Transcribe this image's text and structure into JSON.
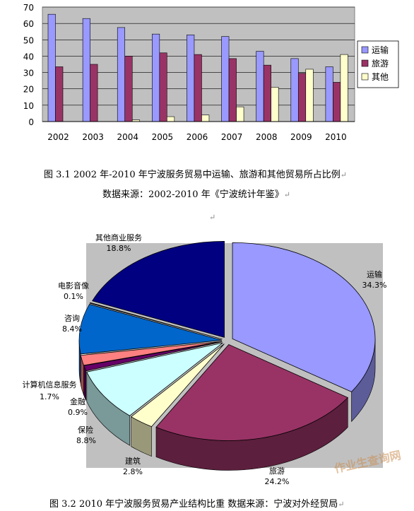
{
  "captions": {
    "fig1_title": "图 3.1   2002 年-2010 年宁波服务贸易中运输、旅游和其他贸易所占比例",
    "fig1_source": "数据来源：2002-2010 年《宁波统计年鉴》",
    "fig2_title": "图 3.2  2010 年宁波服务贸易产业结构比重 数据来源：宁波对外经贸局"
  },
  "watermark": "作业生查询网",
  "chart_data": [
    {
      "type": "bar",
      "categories": [
        "2002",
        "2003",
        "2004",
        "2005",
        "2006",
        "2007",
        "2008",
        "2009",
        "2010"
      ],
      "series": [
        {
          "name": "运输",
          "color": "#9999ff",
          "values": [
            65.6,
            63.0,
            57.5,
            53.5,
            53.0,
            52.0,
            43.0,
            38.5,
            33.5
          ]
        },
        {
          "name": "旅游",
          "color": "#993366",
          "values": [
            33.5,
            35.0,
            40.0,
            42.0,
            41.0,
            38.5,
            34.5,
            29.5,
            24.0
          ]
        },
        {
          "name": "其他",
          "color": "#ffffcc",
          "values": [
            0.0,
            0.0,
            1.0,
            3.0,
            4.0,
            9.0,
            21.0,
            32.0,
            41.0
          ]
        }
      ],
      "ylim": [
        0,
        70
      ],
      "yticks": [
        0,
        10,
        20,
        30,
        40,
        50,
        60,
        70
      ],
      "legend": "right",
      "grid": true
    },
    {
      "type": "pie",
      "style": "3d exploded",
      "slices": [
        {
          "label": "运输",
          "value": 34.3,
          "pct": "34.3%",
          "color": "#9999ff"
        },
        {
          "label": "旅游",
          "value": 24.2,
          "pct": "24.2%",
          "color": "#993366"
        },
        {
          "label": "建筑",
          "value": 2.8,
          "pct": "2.8%",
          "color": "#ffffcc"
        },
        {
          "label": "保险",
          "value": 8.8,
          "pct": "8.8%",
          "color": "#ccffff"
        },
        {
          "label": "金融",
          "value": 0.9,
          "pct": "0.9%",
          "color": "#660066"
        },
        {
          "label": "计算机信息服务",
          "value": 1.7,
          "pct": "1.7%",
          "color": "#ff8080"
        },
        {
          "label": "咨询",
          "value": 8.4,
          "pct": "8.4%",
          "color": "#0066cc"
        },
        {
          "label": "电影音像",
          "value": 0.1,
          "pct": "0.1%",
          "color": "#ccccff"
        },
        {
          "label": "其他商业服务",
          "value": 18.8,
          "pct": "18.8%",
          "color": "#000080"
        }
      ]
    }
  ]
}
